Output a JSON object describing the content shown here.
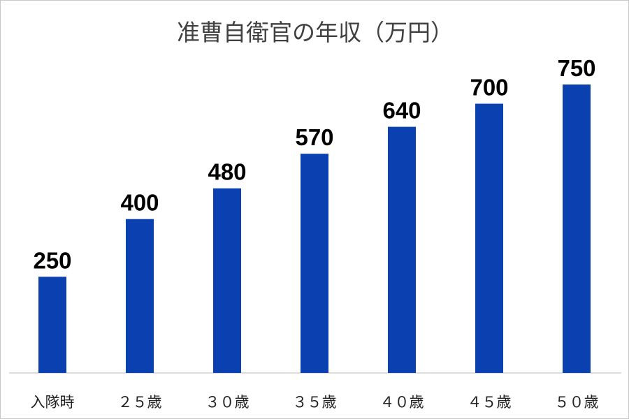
{
  "chart_data": {
    "type": "bar",
    "title": "准曹自衛官の年収（万円）",
    "xlabel": "",
    "ylabel": "",
    "categories": [
      "入隊時",
      "２５歳",
      "３０歳",
      "３５歳",
      "４０歳",
      "４５歳",
      "５０歳"
    ],
    "values": [
      250,
      400,
      480,
      570,
      640,
      700,
      750
    ],
    "data_labels": [
      "250",
      "400",
      "480",
      "570",
      "640",
      "700",
      "750"
    ],
    "ylim": [
      0,
      750
    ],
    "grid": false,
    "legend": "none",
    "colors": {
      "bar": "#0a40b0",
      "axis": "#d0d0d0"
    }
  }
}
